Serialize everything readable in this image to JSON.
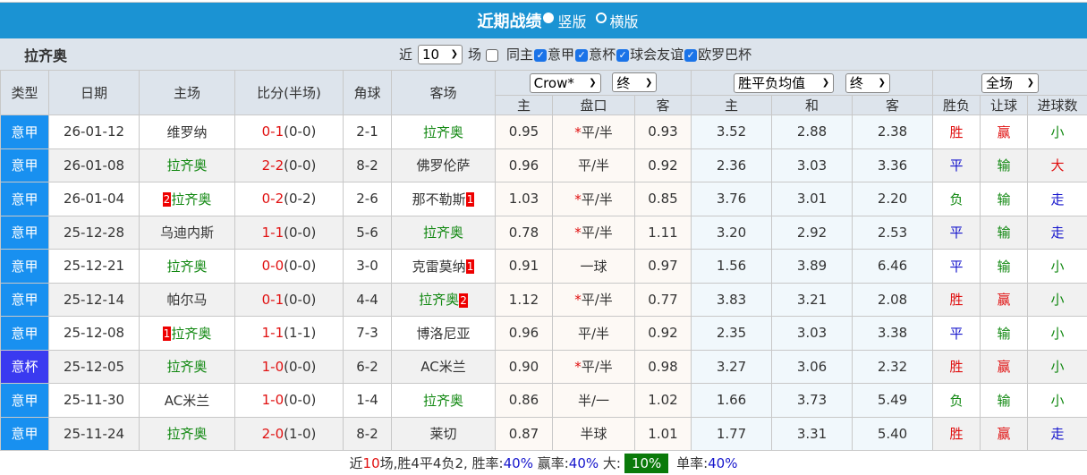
{
  "header": {
    "title": "近期战绩",
    "view_vertical": "竖版",
    "view_horizontal": "横版",
    "vertical_selected": true
  },
  "filter": {
    "team": "拉齐奥",
    "recent_prefix": "近",
    "recent_count": "10",
    "recent_suffix": "场",
    "checkboxes": [
      {
        "label": "同主",
        "checked": false
      },
      {
        "label": "意甲",
        "checked": true
      },
      {
        "label": "意杯",
        "checked": true
      },
      {
        "label": "球会友谊",
        "checked": true
      },
      {
        "label": "欧罗巴杯",
        "checked": true
      }
    ]
  },
  "columns": {
    "type": "类型",
    "date": "日期",
    "home": "主场",
    "score": "比分(半场)",
    "corner": "角球",
    "away": "客场",
    "odds_company": "Crow*",
    "odds_stage": "终",
    "euro_type": "胜平负均值",
    "euro_stage": "终",
    "result_scope": "全场",
    "odds_home": "主",
    "odds_line": "盘口",
    "odds_away": "客",
    "euro_home": "主",
    "euro_draw": "和",
    "euro_away": "客",
    "wl": "胜负",
    "handicap": "让球",
    "goals": "进球数"
  },
  "colors": {
    "header_blue": "#1b93d3",
    "league_blue": "#1890f0",
    "cup_blue": "#3a3af0",
    "team_green": "#118811",
    "red": "#e01010",
    "blue": "#1515cc"
  },
  "rows": [
    {
      "type": "意甲",
      "date": "26-01-12",
      "home": "维罗纳",
      "home_card": "",
      "home_hl": false,
      "score": "0-1",
      "half": "(0-0)",
      "corner": "2-1",
      "away": "拉齐奥",
      "away_card": "",
      "away_hl": true,
      "oh": "0.95",
      "line": "平/半",
      "star": true,
      "oa": "0.93",
      "eh": "3.52",
      "ed": "2.88",
      "ea": "2.38",
      "wl": "胜",
      "hc": "赢",
      "gl": "小"
    },
    {
      "type": "意甲",
      "date": "26-01-08",
      "home": "拉齐奥",
      "home_card": "",
      "home_hl": true,
      "score": "2-2",
      "half": "(0-0)",
      "corner": "8-2",
      "away": "佛罗伦萨",
      "away_card": "",
      "away_hl": false,
      "oh": "0.96",
      "line": "平/半",
      "star": false,
      "oa": "0.92",
      "eh": "2.36",
      "ed": "3.03",
      "ea": "3.36",
      "wl": "平",
      "hc": "输",
      "gl": "大"
    },
    {
      "type": "意甲",
      "date": "26-01-04",
      "home": "拉齐奥",
      "home_card": "2",
      "home_hl": true,
      "score": "0-2",
      "half": "(0-2)",
      "corner": "2-6",
      "away": "那不勒斯",
      "away_card": "1",
      "away_hl": false,
      "oh": "1.03",
      "line": "平/半",
      "star": true,
      "oa": "0.85",
      "eh": "3.76",
      "ed": "3.01",
      "ea": "2.20",
      "wl": "负",
      "hc": "输",
      "gl": "走"
    },
    {
      "type": "意甲",
      "date": "25-12-28",
      "home": "乌迪内斯",
      "home_card": "",
      "home_hl": false,
      "score": "1-1",
      "half": "(0-0)",
      "corner": "5-6",
      "away": "拉齐奥",
      "away_card": "",
      "away_hl": true,
      "oh": "0.78",
      "line": "平/半",
      "star": true,
      "oa": "1.11",
      "eh": "3.20",
      "ed": "2.92",
      "ea": "2.53",
      "wl": "平",
      "hc": "输",
      "gl": "走"
    },
    {
      "type": "意甲",
      "date": "25-12-21",
      "home": "拉齐奥",
      "home_card": "",
      "home_hl": true,
      "score": "0-0",
      "half": "(0-0)",
      "corner": "3-0",
      "away": "克雷莫纳",
      "away_card": "1",
      "away_hl": false,
      "oh": "0.91",
      "line": "一球",
      "star": false,
      "oa": "0.97",
      "eh": "1.56",
      "ed": "3.89",
      "ea": "6.46",
      "wl": "平",
      "hc": "输",
      "gl": "小"
    },
    {
      "type": "意甲",
      "date": "25-12-14",
      "home": "帕尔马",
      "home_card": "",
      "home_hl": false,
      "score": "0-1",
      "half": "(0-0)",
      "corner": "4-4",
      "away": "拉齐奥",
      "away_card": "2",
      "away_hl": true,
      "oh": "1.12",
      "line": "平/半",
      "star": true,
      "oa": "0.77",
      "eh": "3.83",
      "ed": "3.21",
      "ea": "2.08",
      "wl": "胜",
      "hc": "赢",
      "gl": "小"
    },
    {
      "type": "意甲",
      "date": "25-12-08",
      "home": "拉齐奥",
      "home_card": "1",
      "home_hl": true,
      "score": "1-1",
      "half": "(1-1)",
      "corner": "7-3",
      "away": "博洛尼亚",
      "away_card": "",
      "away_hl": false,
      "oh": "0.96",
      "line": "平/半",
      "star": false,
      "oa": "0.92",
      "eh": "2.35",
      "ed": "3.03",
      "ea": "3.38",
      "wl": "平",
      "hc": "输",
      "gl": "小"
    },
    {
      "type": "意杯",
      "date": "25-12-05",
      "home": "拉齐奥",
      "home_card": "",
      "home_hl": true,
      "score": "1-0",
      "half": "(0-0)",
      "corner": "6-2",
      "away": "AC米兰",
      "away_card": "",
      "away_hl": false,
      "oh": "0.90",
      "line": "平/半",
      "star": true,
      "oa": "0.98",
      "eh": "3.27",
      "ed": "3.06",
      "ea": "2.32",
      "wl": "胜",
      "hc": "赢",
      "gl": "小"
    },
    {
      "type": "意甲",
      "date": "25-11-30",
      "home": "AC米兰",
      "home_card": "",
      "home_hl": false,
      "score": "1-0",
      "half": "(0-0)",
      "corner": "1-4",
      "away": "拉齐奥",
      "away_card": "",
      "away_hl": true,
      "oh": "0.86",
      "line": "半/一",
      "star": false,
      "oa": "1.02",
      "eh": "1.66",
      "ed": "3.73",
      "ea": "5.49",
      "wl": "负",
      "hc": "输",
      "gl": "小"
    },
    {
      "type": "意甲",
      "date": "25-11-24",
      "home": "拉齐奥",
      "home_card": "",
      "home_hl": true,
      "score": "2-0",
      "half": "(1-0)",
      "corner": "8-2",
      "away": "莱切",
      "away_card": "",
      "away_hl": false,
      "oh": "0.87",
      "line": "半球",
      "star": false,
      "oa": "1.01",
      "eh": "1.77",
      "ed": "3.31",
      "ea": "5.40",
      "wl": "胜",
      "hc": "赢",
      "gl": "走"
    }
  ],
  "summary": {
    "p1": "近",
    "count": "10",
    "p2": "场,胜4平4负2, 胜率:",
    "win_rate": "40%",
    "p3": " 赢率:",
    "cover_rate": "40%",
    "p4": " 大:",
    "over_rate": "10%",
    "p5": " 单率:",
    "odd_rate": "40%"
  }
}
